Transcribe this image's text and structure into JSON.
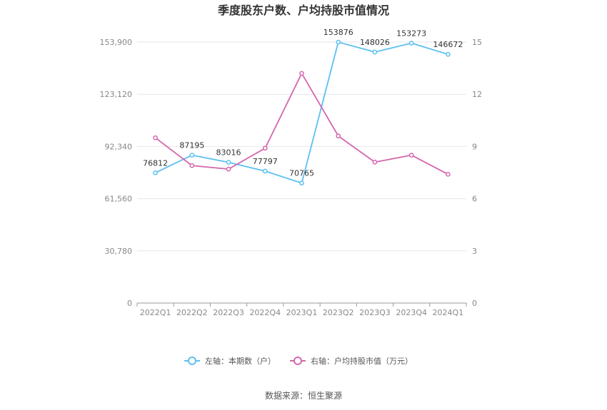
{
  "chart_data": {
    "type": "line",
    "title": "季度股东户数、户均持股市值情况",
    "categories": [
      "2022Q1",
      "2022Q2",
      "2022Q3",
      "2022Q4",
      "2023Q1",
      "2023Q2",
      "2023Q3",
      "2023Q4",
      "2024Q1"
    ],
    "left_axis": {
      "ticks": [
        0,
        30780,
        61560,
        92340,
        123120,
        153900
      ],
      "tick_labels": [
        "0",
        "30,780",
        "61,560",
        "92,340",
        "123,120",
        "153,900"
      ],
      "ylim": [
        0,
        153900
      ]
    },
    "right_axis": {
      "ticks": [
        0,
        3,
        6,
        9,
        12,
        15
      ],
      "tick_labels": [
        "0",
        "3",
        "6",
        "9",
        "12",
        "15"
      ],
      "ylim": [
        0,
        15
      ]
    },
    "series": [
      {
        "name": "左轴：本期数（户）",
        "axis": "left",
        "color": "#5bc0f0",
        "values": [
          76812,
          87195,
          83016,
          77797,
          70765,
          153876,
          148026,
          153273,
          146672
        ],
        "labels": [
          "76812",
          "87195",
          "83016",
          "77797",
          "70765",
          "153876",
          "148026",
          "153273",
          "146672"
        ]
      },
      {
        "name": "右轴：户均持股市值（万元）",
        "axis": "right",
        "color": "#d467ad",
        "values": [
          9.5,
          7.9,
          7.7,
          8.9,
          13.2,
          9.6,
          8.1,
          8.5,
          7.4
        ]
      }
    ],
    "grid": true,
    "legend_position": "bottom"
  },
  "source": "数据来源：恒生聚源"
}
